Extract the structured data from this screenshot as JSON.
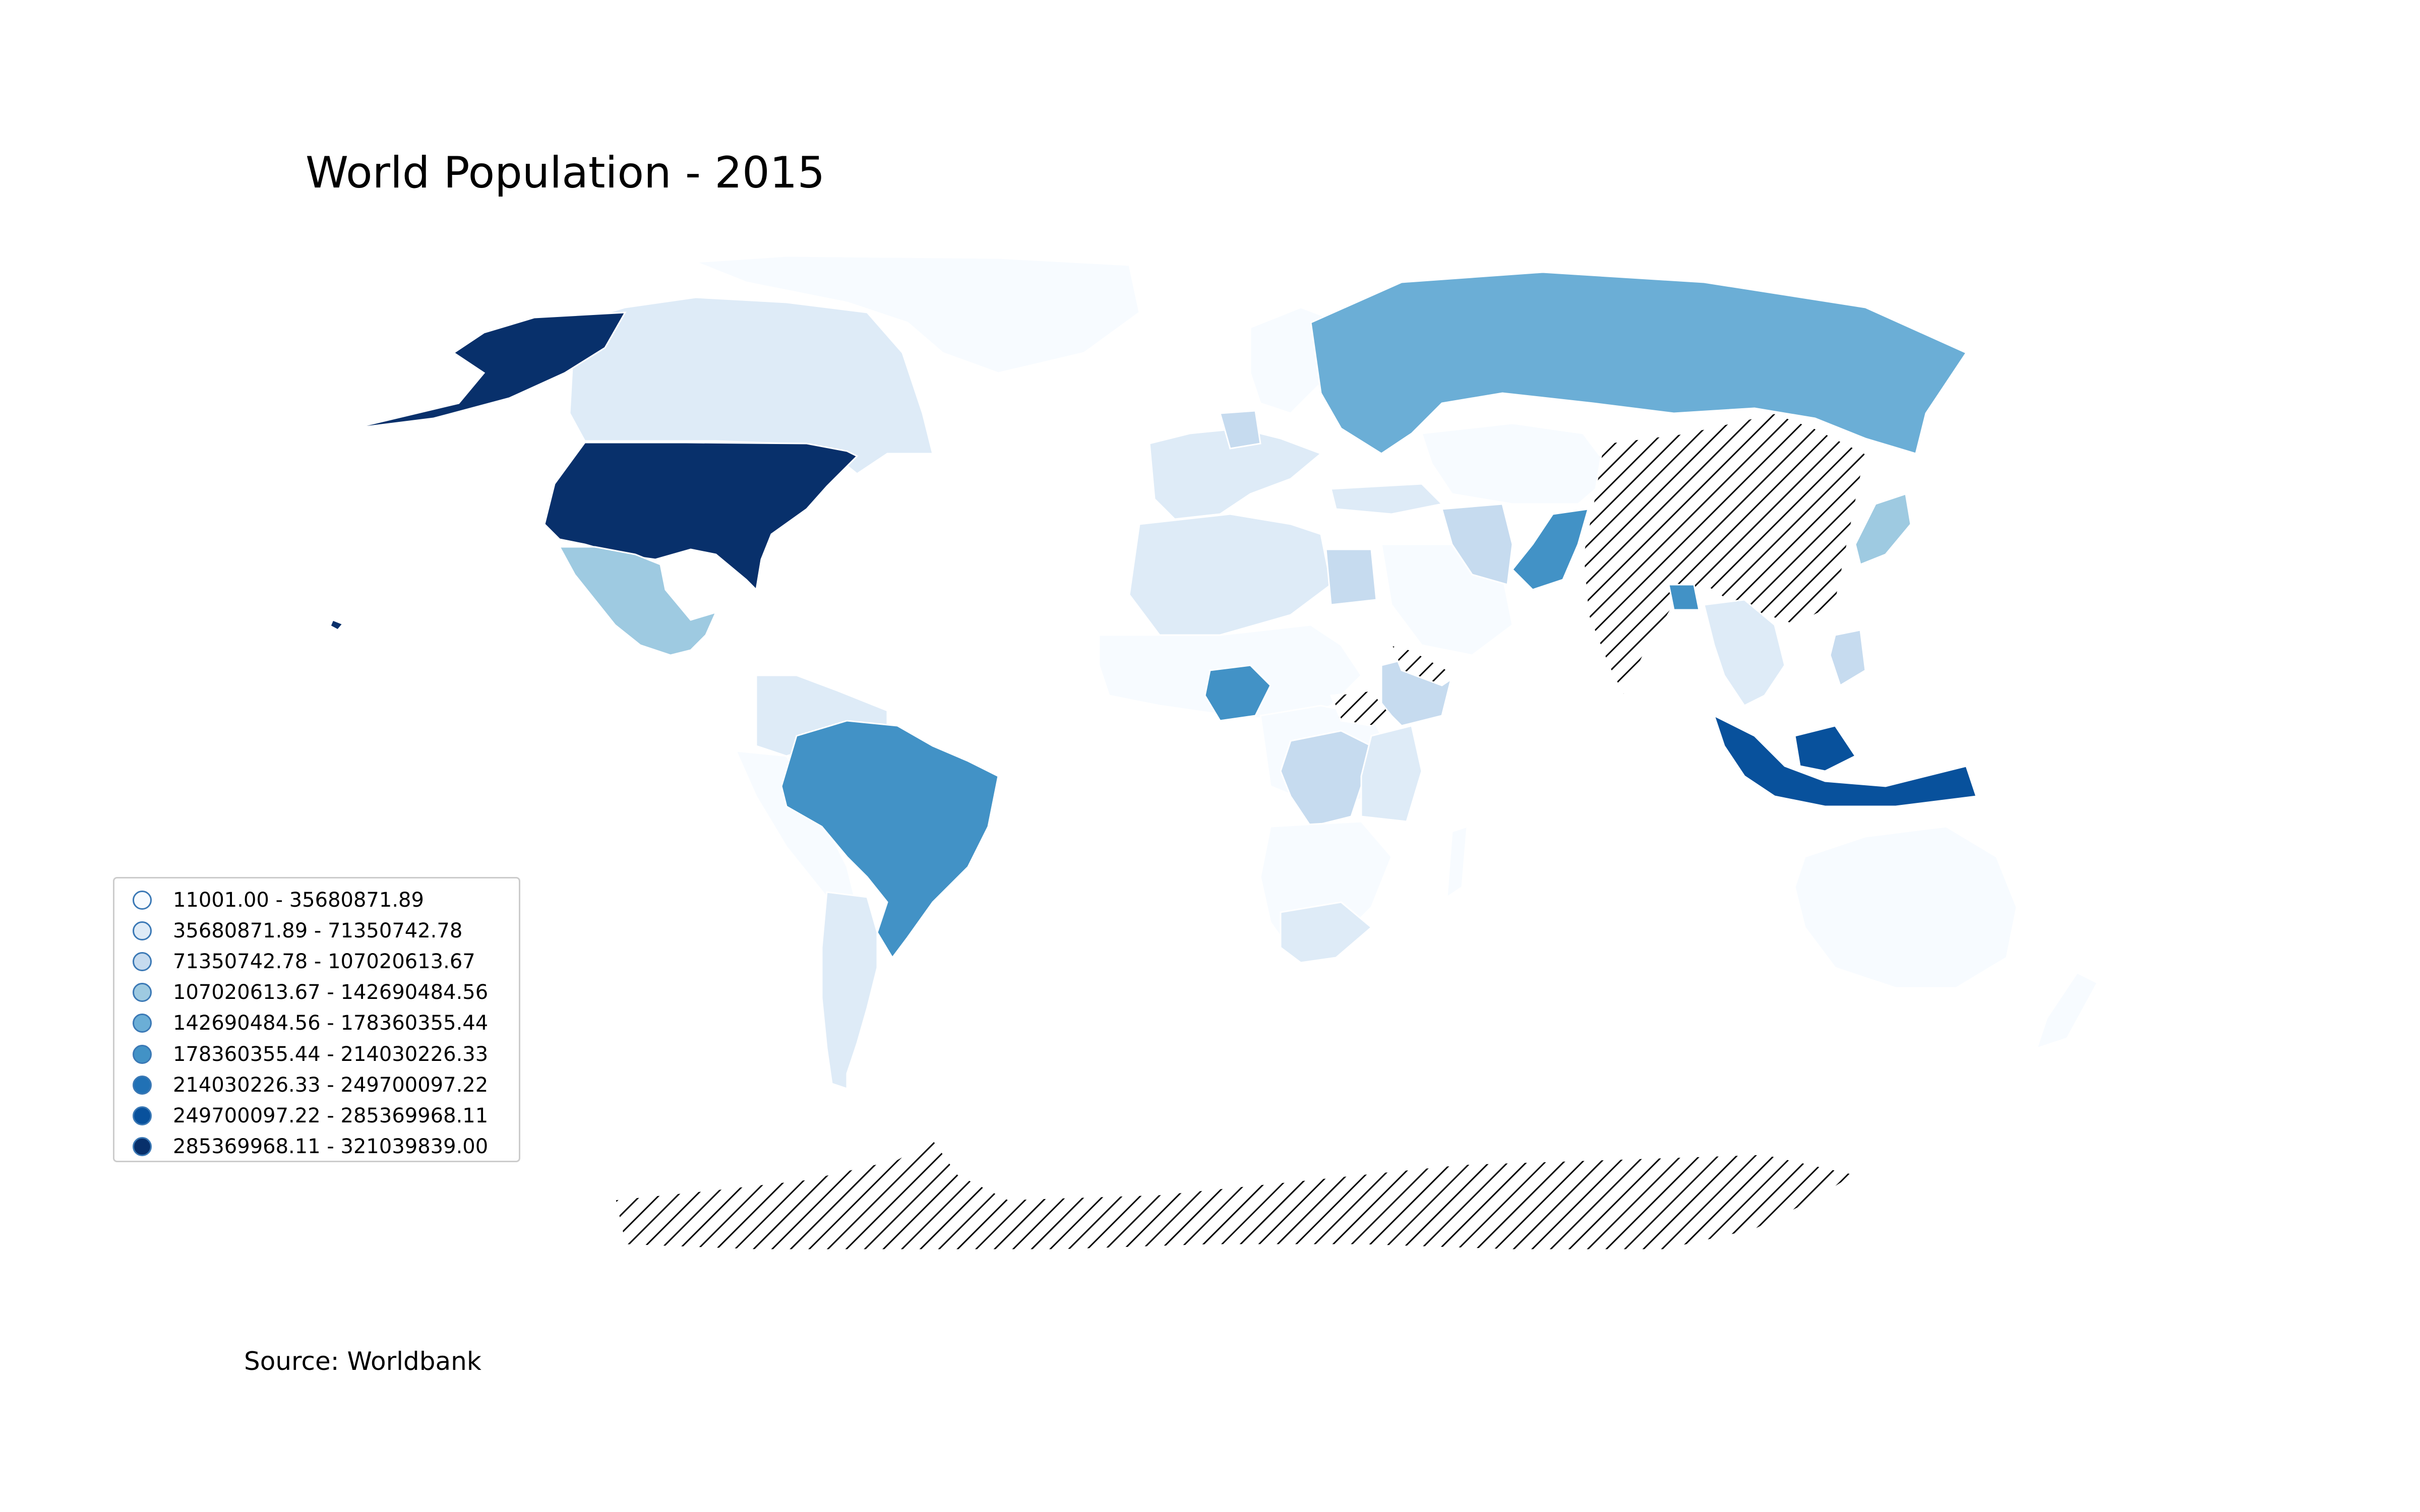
{
  "map": {
    "title": "World Population - 2015",
    "source": "Source: Worldbank",
    "legend": {
      "classes": [
        {
          "label": "11001.00 - 35680871.89",
          "color": "#f7fbff"
        },
        {
          "label": "35680871.89 - 71350742.78",
          "color": "#deebf7"
        },
        {
          "label": "71350742.78 - 107020613.67",
          "color": "#c6dbef"
        },
        {
          "label": "107020613.67 - 142690484.56",
          "color": "#9ecae1"
        },
        {
          "label": "142690484.56 - 178360355.44",
          "color": "#6baed6"
        },
        {
          "label": "178360355.44 - 214030226.33",
          "color": "#4292c6"
        },
        {
          "label": "214030226.33 - 249700097.22",
          "color": "#2171b5"
        },
        {
          "label": "249700097.22 - 285369968.11",
          "color": "#08519c"
        },
        {
          "label": "285369968.11 - 321039839.00",
          "color": "#08306b"
        }
      ],
      "missing_data_pattern": "diagonal-hatch"
    },
    "colormap": "Blues"
  }
}
